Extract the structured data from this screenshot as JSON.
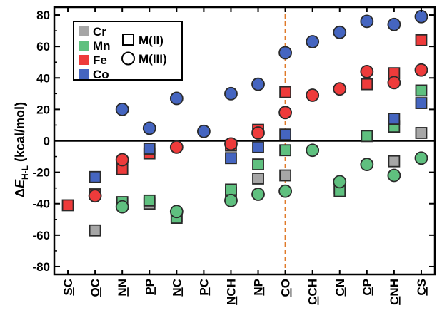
{
  "chart_data": {
    "type": "scatter",
    "ylabel": {
      "prefix": "Δ",
      "main": "E",
      "sub": "H-L",
      "suffix": " (kcal/mol)"
    },
    "ylim": [
      -85,
      85
    ],
    "yticks": [
      80,
      60,
      40,
      20,
      0,
      -20,
      -40,
      -60,
      -80
    ],
    "categories": [
      {
        "label": "SC",
        "underline": 0
      },
      {
        "label": "OC",
        "underline": 0
      },
      {
        "label": "NN",
        "underline": 0
      },
      {
        "label": "PP",
        "underline": 0
      },
      {
        "label": "NC",
        "underline": 0
      },
      {
        "label": "PC",
        "underline": 0
      },
      {
        "label": "NCH",
        "underline": 0
      },
      {
        "label": "NP",
        "underline": 0
      },
      {
        "label": "CO",
        "underline": 0
      },
      {
        "label": "CCH",
        "underline": 0
      },
      {
        "label": "CN",
        "underline": 0
      },
      {
        "label": "CP",
        "underline": 0
      },
      {
        "label": "CNH",
        "underline": 0
      },
      {
        "label": "CS",
        "underline": 0
      }
    ],
    "reference_line": {
      "category": "CO",
      "color": "#e07a2a"
    },
    "zero_line": true,
    "legend": {
      "position": "top-left",
      "metals": [
        {
          "name": "Cr",
          "color": "#a6a6a6"
        },
        {
          "name": "Mn",
          "color": "#5fc07f"
        },
        {
          "name": "Fe",
          "color": "#ee3b3b"
        },
        {
          "name": "Co",
          "color": "#4565c0"
        }
      ],
      "markers": [
        {
          "name": "M(II)",
          "shape": "square"
        },
        {
          "name": "M(III)",
          "shape": "circle"
        }
      ]
    },
    "series": [
      {
        "metal": "Cr",
        "oxidation": "M(II)",
        "color": "#a6a6a6",
        "shape": "square",
        "values": [
          null,
          -57,
          -40,
          -40,
          -48,
          null,
          -33,
          -24,
          -22,
          null,
          -30,
          null,
          -13,
          5
        ]
      },
      {
        "metal": "Mn",
        "oxidation": "M(II)",
        "color": "#5fc07f",
        "shape": "square",
        "values": [
          null,
          null,
          -39,
          -38,
          -49,
          null,
          -31,
          -15,
          -6,
          null,
          -32,
          3,
          9,
          32
        ]
      },
      {
        "metal": "Fe",
        "oxidation": "M(II)",
        "color": "#ee3b3b",
        "shape": "square",
        "values": [
          -41,
          -34,
          -18,
          -8,
          null,
          null,
          -3,
          7,
          31,
          null,
          null,
          36,
          43,
          64
        ]
      },
      {
        "metal": "Co",
        "oxidation": "M(II)",
        "color": "#4565c0",
        "shape": "square",
        "values": [
          null,
          -23,
          null,
          -5,
          null,
          null,
          -11,
          -4,
          4,
          null,
          null,
          null,
          14,
          24
        ]
      },
      {
        "metal": "Mn",
        "oxidation": "M(III)",
        "color": "#5fc07f",
        "shape": "circle",
        "values": [
          null,
          null,
          -42,
          null,
          -45,
          null,
          -38,
          -34,
          -32,
          -6,
          -26,
          -15,
          -22,
          -11
        ]
      },
      {
        "metal": "Fe",
        "oxidation": "M(III)",
        "color": "#ee3b3b",
        "shape": "circle",
        "values": [
          null,
          -35,
          -12,
          null,
          -4,
          null,
          -2,
          5,
          18,
          29,
          33,
          44,
          37,
          45
        ]
      },
      {
        "metal": "Co",
        "oxidation": "M(III)",
        "color": "#4565c0",
        "shape": "circle",
        "values": [
          null,
          null,
          20,
          8,
          27,
          6,
          30,
          36,
          56,
          63,
          69,
          76,
          74,
          79
        ]
      }
    ]
  }
}
